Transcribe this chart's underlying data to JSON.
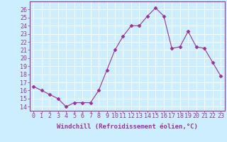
{
  "x": [
    0,
    1,
    2,
    3,
    4,
    5,
    6,
    7,
    8,
    9,
    10,
    11,
    12,
    13,
    14,
    15,
    16,
    17,
    18,
    19,
    20,
    21,
    22,
    23
  ],
  "y": [
    16.5,
    16.0,
    15.5,
    15.0,
    14.0,
    14.5,
    14.5,
    14.5,
    16.0,
    18.5,
    21.0,
    22.7,
    24.0,
    24.0,
    25.2,
    26.2,
    25.2,
    21.2,
    21.4,
    23.3,
    21.4,
    21.2,
    19.5,
    17.8
  ],
  "line_color": "#993399",
  "marker": "D",
  "marker_size": 2.5,
  "bg_color": "#cceeff",
  "grid_color": "#aaddcc",
  "tick_color": "#993399",
  "label_color": "#993399",
  "xlabel": "Windchill (Refroidissement éolien,°C)",
  "ylim": [
    13.5,
    27.0
  ],
  "yticks": [
    14,
    15,
    16,
    17,
    18,
    19,
    20,
    21,
    22,
    23,
    24,
    25,
    26
  ],
  "xticks": [
    0,
    1,
    2,
    3,
    4,
    5,
    6,
    7,
    8,
    9,
    10,
    11,
    12,
    13,
    14,
    15,
    16,
    17,
    18,
    19,
    20,
    21,
    22,
    23
  ],
  "xtick_labels": [
    "0",
    "1",
    "2",
    "3",
    "4",
    "5",
    "6",
    "7",
    "8",
    "9",
    "10",
    "11",
    "12",
    "13",
    "14",
    "15",
    "16",
    "17",
    "18",
    "19",
    "20",
    "21",
    "22",
    "23"
  ],
  "font_size_label": 6.5,
  "font_size_tick": 6.0
}
